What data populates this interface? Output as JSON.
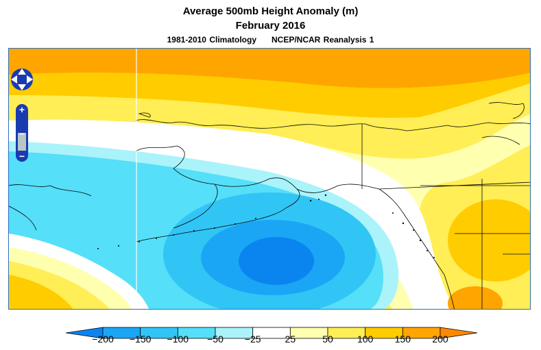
{
  "header": {
    "title": "Average 500mb Height Anomaly (m)",
    "period": "February 2016",
    "climatology": "1981-2010 Climatology",
    "source": "NCEP/NCAR Reanalysis 1"
  },
  "map_controls": {
    "pan": "pan-control",
    "zoom_in": "+",
    "zoom_out": "−",
    "zoom_slider_mid": "−"
  },
  "legend": {
    "labels": [
      "−200",
      "−150",
      "−100",
      "−50",
      "−25",
      "25",
      "50",
      "100",
      "150",
      "200"
    ],
    "colors": [
      "#0a85f0",
      "#1aa6f5",
      "#30c5f5",
      "#55dff8",
      "#aaf3fa",
      "#ffffff",
      "#ffffb0",
      "#ffee55",
      "#ffcc00",
      "#ffa500",
      "#ff8800"
    ]
  }
}
